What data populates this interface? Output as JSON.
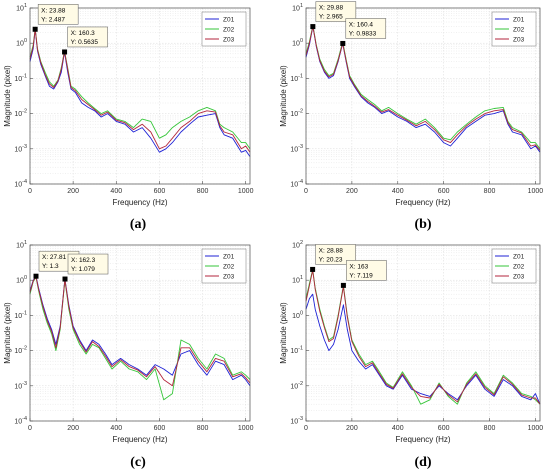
{
  "figure": {
    "colors": {
      "series": [
        "#1f22d6",
        "#36c63a",
        "#b3263c"
      ],
      "grid": "#d9d9d9",
      "axis": "#4d4d4d",
      "marker": "#000000",
      "datatip_bg": "#fffbe6",
      "datatip_border": "#555555"
    }
  },
  "chart_data": [
    {
      "type": "line",
      "panel": "(a)",
      "xlabel": "Frequency (Hz)",
      "ylabel": "Magnitude (pixel)",
      "xscale": "linear",
      "yscale": "log",
      "xlim": [
        0,
        1020
      ],
      "ylim": [
        0.0001,
        10
      ],
      "xticks": [
        0,
        200,
        400,
        600,
        800,
        1000
      ],
      "yticks": [
        "10^-4",
        "10^-3",
        "10^-2",
        "10^-1",
        "10^0",
        "10^1"
      ],
      "grid": true,
      "legend": "top-right",
      "x": [
        0,
        15,
        24,
        35,
        50,
        70,
        90,
        110,
        130,
        145,
        160,
        175,
        190,
        210,
        240,
        270,
        300,
        330,
        360,
        400,
        440,
        480,
        520,
        560,
        600,
        630,
        660,
        700,
        740,
        780,
        820,
        860,
        880,
        900,
        940,
        980,
        1000,
        1020
      ],
      "series": [
        {
          "name": "Z01",
          "values": [
            0.3,
            0.7,
            2.487,
            0.6,
            0.25,
            0.12,
            0.06,
            0.05,
            0.08,
            0.15,
            0.5635,
            0.15,
            0.05,
            0.04,
            0.02,
            0.015,
            0.012,
            0.008,
            0.01,
            0.006,
            0.005,
            0.003,
            0.004,
            0.002,
            0.0008,
            0.001,
            0.0015,
            0.003,
            0.005,
            0.008,
            0.009,
            0.01,
            0.004,
            0.0025,
            0.002,
            0.0008,
            0.0009,
            0.0006
          ]
        },
        {
          "name": "Z02",
          "values": [
            0.4,
            0.9,
            2.6,
            0.7,
            0.3,
            0.15,
            0.08,
            0.06,
            0.09,
            0.2,
            0.6,
            0.2,
            0.06,
            0.05,
            0.03,
            0.02,
            0.014,
            0.01,
            0.012,
            0.007,
            0.006,
            0.004,
            0.007,
            0.006,
            0.002,
            0.0025,
            0.004,
            0.006,
            0.008,
            0.012,
            0.015,
            0.012,
            0.005,
            0.004,
            0.003,
            0.0015,
            0.0015,
            0.001
          ]
        },
        {
          "name": "Z03",
          "values": [
            0.35,
            0.8,
            2.5,
            0.65,
            0.28,
            0.13,
            0.07,
            0.055,
            0.085,
            0.18,
            0.58,
            0.18,
            0.055,
            0.045,
            0.025,
            0.018,
            0.013,
            0.009,
            0.011,
            0.0065,
            0.0055,
            0.0035,
            0.005,
            0.003,
            0.001,
            0.0012,
            0.002,
            0.004,
            0.006,
            0.01,
            0.012,
            0.011,
            0.0045,
            0.003,
            0.0025,
            0.001,
            0.0012,
            0.0008
          ]
        }
      ],
      "annotations": [
        {
          "x": 23.88,
          "y": 2.487,
          "label_x": "X: 23.88",
          "label_y": "Y: 2.487"
        },
        {
          "x": 160.3,
          "y": 0.5635,
          "label_x": "X: 160.3",
          "label_y": "Y: 0.5635"
        }
      ]
    },
    {
      "type": "line",
      "panel": "(b)",
      "xlabel": "Frequency (Hz)",
      "ylabel": "Magnitude (pixel)",
      "xscale": "linear",
      "yscale": "log",
      "xlim": [
        0,
        1020
      ],
      "ylim": [
        0.0001,
        10
      ],
      "xticks": [
        0,
        200,
        400,
        600,
        800,
        1000
      ],
      "yticks": [
        "10^-4",
        "10^-3",
        "10^-2",
        "10^-1",
        "10^0",
        "10^1"
      ],
      "grid": true,
      "legend": "top-right",
      "x": [
        0,
        15,
        30,
        45,
        60,
        80,
        100,
        120,
        140,
        160,
        175,
        190,
        210,
        240,
        270,
        300,
        330,
        360,
        400,
        440,
        480,
        520,
        560,
        600,
        630,
        660,
        700,
        740,
        780,
        820,
        860,
        880,
        900,
        940,
        980,
        1000,
        1020
      ],
      "series": [
        {
          "name": "Z01",
          "values": [
            0.4,
            0.9,
            2.965,
            0.8,
            0.3,
            0.15,
            0.1,
            0.12,
            0.3,
            0.9833,
            0.3,
            0.1,
            0.06,
            0.03,
            0.02,
            0.015,
            0.01,
            0.012,
            0.008,
            0.006,
            0.004,
            0.005,
            0.003,
            0.0015,
            0.0012,
            0.002,
            0.004,
            0.006,
            0.009,
            0.01,
            0.012,
            0.005,
            0.003,
            0.0025,
            0.001,
            0.0012,
            0.0008
          ]
        },
        {
          "name": "Z02",
          "values": [
            0.5,
            1.1,
            3.2,
            0.9,
            0.35,
            0.18,
            0.12,
            0.14,
            0.35,
            1.1,
            0.35,
            0.12,
            0.07,
            0.035,
            0.025,
            0.018,
            0.012,
            0.015,
            0.01,
            0.007,
            0.005,
            0.007,
            0.004,
            0.002,
            0.0018,
            0.003,
            0.005,
            0.008,
            0.012,
            0.014,
            0.015,
            0.006,
            0.004,
            0.003,
            0.0015,
            0.0015,
            0.001
          ]
        },
        {
          "name": "Z03",
          "values": [
            0.45,
            1.0,
            3.0,
            0.85,
            0.32,
            0.16,
            0.11,
            0.13,
            0.32,
            1.0,
            0.32,
            0.11,
            0.065,
            0.032,
            0.022,
            0.016,
            0.011,
            0.013,
            0.009,
            0.0065,
            0.0045,
            0.006,
            0.0035,
            0.0018,
            0.0015,
            0.0025,
            0.0045,
            0.007,
            0.01,
            0.012,
            0.013,
            0.0055,
            0.0035,
            0.0028,
            0.0012,
            0.0013,
            0.0009
          ]
        }
      ],
      "annotations": [
        {
          "x": 29.88,
          "y": 2.965,
          "label_x": "X: 29.88",
          "label_y": "Y: 2.965"
        },
        {
          "x": 160.4,
          "y": 0.9833,
          "label_x": "X: 160.4",
          "label_y": "Y: 0.9833"
        }
      ]
    },
    {
      "type": "line",
      "panel": "(c)",
      "xlabel": "Frequency (Hz)",
      "ylabel": "Magnitude (pixel)",
      "xscale": "linear",
      "yscale": "log",
      "xlim": [
        0,
        1020
      ],
      "ylim": [
        0.0001,
        10
      ],
      "xticks": [
        0,
        200,
        400,
        600,
        800,
        1000
      ],
      "yticks": [
        "10^-4",
        "10^-3",
        "10^-2",
        "10^-1",
        "10^0",
        "10^1"
      ],
      "grid": true,
      "legend": "top-right",
      "x": [
        0,
        15,
        28,
        40,
        60,
        80,
        100,
        120,
        140,
        162,
        180,
        200,
        230,
        260,
        290,
        320,
        350,
        380,
        420,
        460,
        500,
        540,
        580,
        620,
        660,
        700,
        740,
        780,
        820,
        860,
        900,
        940,
        980,
        1000,
        1020
      ],
      "series": [
        {
          "name": "Z01",
          "values": [
            0.5,
            1.0,
            1.3,
            0.6,
            0.2,
            0.08,
            0.04,
            0.015,
            0.05,
            1.079,
            0.2,
            0.05,
            0.02,
            0.01,
            0.02,
            0.015,
            0.008,
            0.004,
            0.006,
            0.004,
            0.003,
            0.002,
            0.004,
            0.003,
            0.002,
            0.008,
            0.01,
            0.004,
            0.002,
            0.005,
            0.004,
            0.0015,
            0.002,
            0.0015,
            0.001
          ]
        },
        {
          "name": "Z02",
          "values": [
            0.4,
            0.9,
            1.2,
            0.5,
            0.15,
            0.06,
            0.03,
            0.01,
            0.04,
            1.0,
            0.15,
            0.04,
            0.015,
            0.008,
            0.015,
            0.012,
            0.006,
            0.003,
            0.005,
            0.003,
            0.0025,
            0.0015,
            0.003,
            0.0004,
            0.0006,
            0.02,
            0.015,
            0.006,
            0.003,
            0.008,
            0.006,
            0.002,
            0.0025,
            0.002,
            0.0015
          ]
        },
        {
          "name": "Z03",
          "values": [
            0.45,
            0.95,
            1.25,
            0.55,
            0.18,
            0.07,
            0.035,
            0.012,
            0.045,
            1.05,
            0.18,
            0.045,
            0.018,
            0.009,
            0.018,
            0.013,
            0.007,
            0.0035,
            0.0055,
            0.0035,
            0.0028,
            0.0018,
            0.0035,
            0.0015,
            0.001,
            0.012,
            0.012,
            0.005,
            0.0025,
            0.006,
            0.005,
            0.0018,
            0.0022,
            0.0017,
            0.0012
          ]
        }
      ],
      "annotations": [
        {
          "x": 27.81,
          "y": 1.3,
          "label_x": "X: 27.81",
          "label_y": "Y: 1.3"
        },
        {
          "x": 162.3,
          "y": 1.079,
          "label_x": "X: 162.3",
          "label_y": "Y: 1.079"
        }
      ]
    },
    {
      "type": "line",
      "panel": "(d)",
      "xlabel": "Frequency (Hz)",
      "ylabel": "Magnitude (pixel)",
      "xscale": "linear",
      "yscale": "log",
      "xlim": [
        0,
        1020
      ],
      "ylim": [
        0.001,
        100
      ],
      "xticks": [
        0,
        200,
        400,
        600,
        800,
        1000
      ],
      "yticks": [
        "10^-3",
        "10^-2",
        "10^-1",
        "10^0",
        "10^1",
        "10^2"
      ],
      "grid": true,
      "legend": "top-right",
      "x": [
        0,
        15,
        29,
        40,
        60,
        80,
        100,
        120,
        140,
        163,
        180,
        200,
        230,
        260,
        290,
        320,
        350,
        380,
        420,
        460,
        500,
        540,
        580,
        620,
        660,
        700,
        740,
        780,
        820,
        860,
        900,
        940,
        980,
        1000,
        1020
      ],
      "series": [
        {
          "name": "Z01",
          "values": [
            1.5,
            3.0,
            4.0,
            1.5,
            0.5,
            0.2,
            0.1,
            0.15,
            0.4,
            2.0,
            0.4,
            0.1,
            0.05,
            0.03,
            0.04,
            0.02,
            0.01,
            0.008,
            0.02,
            0.008,
            0.006,
            0.005,
            0.01,
            0.006,
            0.004,
            0.01,
            0.02,
            0.008,
            0.005,
            0.015,
            0.01,
            0.005,
            0.004,
            0.006,
            0.003
          ]
        },
        {
          "name": "Z02",
          "values": [
            3.0,
            8.0,
            20.23,
            6.0,
            1.5,
            0.5,
            0.2,
            0.25,
            1.0,
            7.119,
            1.0,
            0.2,
            0.08,
            0.04,
            0.05,
            0.025,
            0.012,
            0.009,
            0.025,
            0.01,
            0.003,
            0.004,
            0.012,
            0.005,
            0.003,
            0.012,
            0.025,
            0.01,
            0.006,
            0.02,
            0.012,
            0.006,
            0.005,
            0.004,
            0.003
          ]
        },
        {
          "name": "Z03",
          "values": [
            2.5,
            7.0,
            19.0,
            5.5,
            1.3,
            0.45,
            0.18,
            0.22,
            0.9,
            6.5,
            0.9,
            0.18,
            0.07,
            0.035,
            0.045,
            0.022,
            0.011,
            0.0085,
            0.022,
            0.009,
            0.005,
            0.0045,
            0.011,
            0.0055,
            0.0035,
            0.011,
            0.022,
            0.009,
            0.0055,
            0.018,
            0.011,
            0.0055,
            0.0045,
            0.0045,
            0.003
          ]
        }
      ],
      "annotations": [
        {
          "x": 28.88,
          "y": 20.23,
          "label_x": "X: 28.88",
          "label_y": "Y: 20.23"
        },
        {
          "x": 163,
          "y": 7.119,
          "label_x": "X: 163",
          "label_y": "Y: 7.119"
        }
      ]
    }
  ]
}
